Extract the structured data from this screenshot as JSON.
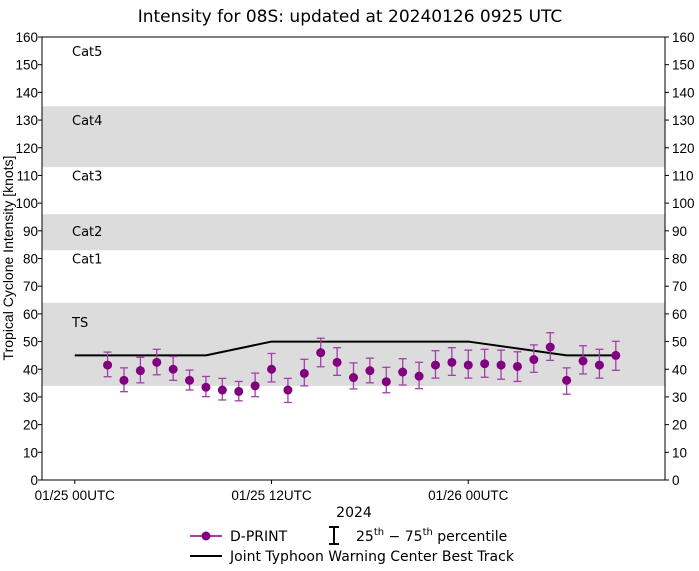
{
  "chart_data": {
    "type": "scatter",
    "title": "Intensity for 08S: updated at 20240126 0925 UTC",
    "xlabel": "2024",
    "ylabel": "Tropical Cyclone Intensity [knots]",
    "ylim": [
      0,
      160
    ],
    "xlim_hours": [
      -2,
      36
    ],
    "yticks": [
      0,
      10,
      20,
      30,
      40,
      50,
      60,
      70,
      80,
      90,
      100,
      110,
      120,
      130,
      140,
      150,
      160
    ],
    "xticks": [
      {
        "hour": 0,
        "label": "01/25 00UTC"
      },
      {
        "hour": 12,
        "label": "01/25 12UTC"
      },
      {
        "hour": 24,
        "label": "01/26 00UTC"
      }
    ],
    "grid": false,
    "categories": [
      {
        "label": "TS",
        "low": 34,
        "high": 64,
        "shaded": true
      },
      {
        "label": "Cat1",
        "low": 64,
        "high": 83,
        "shaded": false
      },
      {
        "label": "Cat2",
        "low": 83,
        "high": 96,
        "shaded": true
      },
      {
        "label": "Cat3",
        "low": 96,
        "high": 113,
        "shaded": false
      },
      {
        "label": "Cat4",
        "low": 113,
        "high": 135,
        "shaded": true
      },
      {
        "label": "Cat5",
        "low": 135,
        "high": 160,
        "shaded": false
      }
    ],
    "series": [
      {
        "name": "D-PRINT",
        "color": "#800080",
        "x_hours": [
          2,
          3,
          4,
          5,
          6,
          7,
          8,
          9,
          10,
          11,
          12,
          13,
          14,
          15,
          16,
          17,
          18,
          19,
          20,
          21,
          22,
          23,
          24,
          25,
          26,
          27,
          28,
          29,
          30,
          31,
          32,
          33
        ],
        "values": [
          41.5,
          36,
          39.5,
          42.5,
          40,
          36,
          33.5,
          32.5,
          32,
          34,
          40,
          32.5,
          38.5,
          46,
          42.5,
          37,
          39.5,
          35.5,
          39,
          37.5,
          41.5,
          42.5,
          41.5,
          42,
          41.5,
          41,
          43.5,
          48,
          36,
          43,
          41.5,
          45
        ],
        "p25": [
          37.3,
          31.9,
          35.1,
          38,
          36,
          32.5,
          30.1,
          28.9,
          28.6,
          30.1,
          35.4,
          28,
          34,
          40.9,
          37.8,
          32.9,
          35.1,
          31.5,
          34.3,
          33,
          36.8,
          37.8,
          36.8,
          37.1,
          36.4,
          35.6,
          38.9,
          43.2,
          31,
          38.3,
          36.8,
          39.6
        ],
        "p75": [
          46.2,
          40.5,
          44.3,
          47.2,
          44.6,
          39.7,
          37.4,
          36.7,
          35.6,
          38.6,
          45.7,
          36.7,
          43.6,
          51.2,
          47.8,
          42.3,
          44,
          40.7,
          43.8,
          42.5,
          46.7,
          47.8,
          46.9,
          47.2,
          46.9,
          46.3,
          48.8,
          53.2,
          40.5,
          48.5,
          47.2,
          50.1
        ]
      },
      {
        "name": "Joint Typhoon Warning Center Best Track",
        "color": "#000000",
        "x_hours": [
          0,
          8,
          12,
          24,
          30,
          33
        ],
        "values": [
          45,
          45,
          50,
          50,
          45,
          45
        ]
      }
    ],
    "legend": {
      "position": "bottom",
      "dprint": "D-PRINT",
      "percentile_25": "25",
      "percentile_75": "75",
      "percentile_suffix": "th",
      "percentile_word": "percentile",
      "best_track": "Joint Typhoon Warning Center Best Track"
    }
  }
}
